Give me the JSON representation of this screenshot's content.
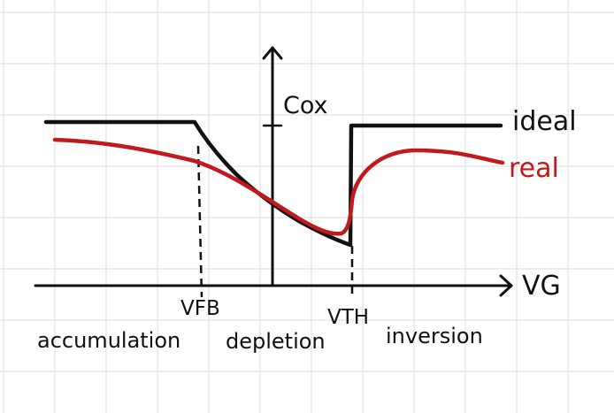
{
  "diagram": {
    "y_axis_label": "Cox",
    "x_axis_label": "VG",
    "vfb_label": "VFB",
    "vth_label": "VTH",
    "curves": [
      {
        "name": "ideal",
        "label": "ideal",
        "color": "#111111"
      },
      {
        "name": "real",
        "label": "real",
        "color": "#c0191e"
      }
    ],
    "regions": [
      "accumulation",
      "depletion",
      "inversion"
    ]
  },
  "colors": {
    "grid": "#e2e2e2",
    "axis": "#111111",
    "ideal": "#111111",
    "real": "#c0191e"
  }
}
